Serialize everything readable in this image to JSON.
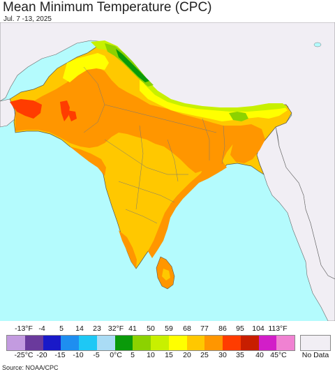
{
  "title": "Mean Minimum Temperature (CPC)",
  "subtitle": "Jul. 7 -13, 2025",
  "source": "Source: NOAA/CPC",
  "legend": {
    "fahrenheit_labels": [
      "-13°F",
      "-4",
      "5",
      "14",
      "23",
      "32°F",
      "41",
      "50",
      "59",
      "68",
      "77",
      "86",
      "95",
      "104",
      "113°F"
    ],
    "celsius_labels": [
      "-25°C",
      "-20",
      "-15",
      "-10",
      "-5",
      "0°C",
      "5",
      "10",
      "15",
      "20",
      "25",
      "30",
      "35",
      "40",
      "45°C"
    ],
    "colors": [
      "#c39be0",
      "#6a3a9c",
      "#1919c8",
      "#1e8ef0",
      "#1ec8f5",
      "#aadcf5",
      "#0a9a0a",
      "#8cd200",
      "#c8f000",
      "#ffff00",
      "#ffc800",
      "#ff9600",
      "#ff3c00",
      "#c81e00",
      "#d21ec8",
      "#f082d2"
    ],
    "no_data_label": "No Data",
    "no_data_color": "#f1eef4"
  },
  "map_colors": {
    "ocean": "#b4fbfd",
    "outside": "#f1eef4",
    "warm": "#ffc800",
    "hot": "#ff9600",
    "very_hot": "#ff3c00",
    "mild": "#ffff00",
    "cool": "#c8f000",
    "cooler": "#8cd200",
    "cold": "#0a9a0a"
  }
}
